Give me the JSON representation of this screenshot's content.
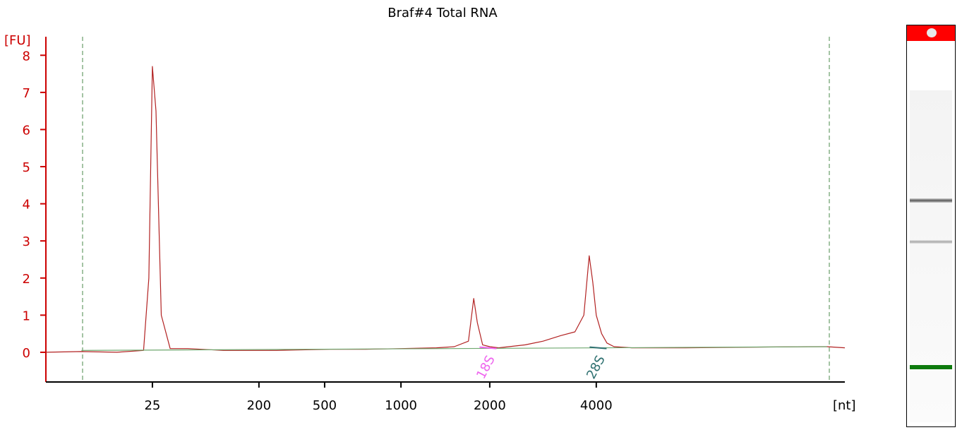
{
  "chart_data": {
    "type": "line",
    "title": "Braf#4 Total RNA",
    "ylabel": "[FU]",
    "xlabel": "[nt]",
    "ylim": [
      -0.8,
      8.5
    ],
    "yticks": [
      0,
      1,
      2,
      3,
      4,
      5,
      6,
      7,
      8
    ],
    "xticks": [
      {
        "label": "25",
        "time": 18.0
      },
      {
        "label": "200",
        "time": 24.0
      },
      {
        "label": "500",
        "time": 27.7
      },
      {
        "label": "1000",
        "time": 32.0
      },
      {
        "label": "2000",
        "time": 37.0
      },
      {
        "label": "4000",
        "time": 43.0
      }
    ],
    "xlim_time": [
      12.0,
      57.0
    ],
    "markers": [
      {
        "label": "18S",
        "color": "#ee66ee",
        "time": 37.3
      },
      {
        "label": "28S",
        "color": "#2e7070",
        "time": 43.5
      }
    ],
    "series": [
      {
        "color": "#b22222",
        "x": [
          12.0,
          14.0,
          16.0,
          17.5,
          17.8,
          18.0,
          18.2,
          18.5,
          19.0,
          20.0,
          22.0,
          25.0,
          28.0,
          30.0,
          32.0,
          34.0,
          35.0,
          35.8,
          36.1,
          36.3,
          36.6,
          37.0,
          37.5,
          39.0,
          40.0,
          41.0,
          41.8,
          42.3,
          42.6,
          42.8,
          43.0,
          43.3,
          43.6,
          44.0,
          45.0,
          48.0,
          52.0,
          55.0,
          56.0,
          57.0
        ],
        "y": [
          0.0,
          0.02,
          0.0,
          0.05,
          2.0,
          7.7,
          6.5,
          1.0,
          0.1,
          0.1,
          0.05,
          0.05,
          0.08,
          0.08,
          0.1,
          0.12,
          0.15,
          0.3,
          1.45,
          0.8,
          0.2,
          0.15,
          0.12,
          0.2,
          0.3,
          0.45,
          0.55,
          1.0,
          2.6,
          1.9,
          1.0,
          0.5,
          0.25,
          0.15,
          0.12,
          0.12,
          0.14,
          0.15,
          0.15,
          0.12
        ]
      },
      {
        "color": "#6fa86f",
        "x": [
          14.0,
          56.0
        ],
        "y": [
          0.05,
          0.15
        ]
      }
    ]
  }
}
